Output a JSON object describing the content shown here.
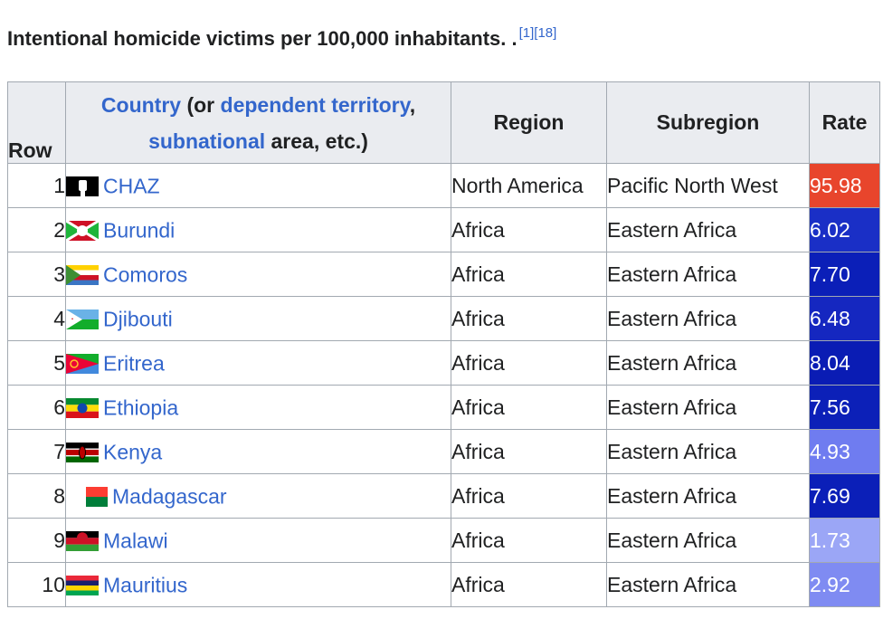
{
  "caption": "Intentional homicide victims per 100,000 inhabitants. .",
  "caption_refs": "[1][18]",
  "headers": {
    "row": "Row",
    "country_link1": "Country",
    "country_text1": " (or ",
    "country_link2": "dependent territory",
    "country_text2": ",",
    "country_link3": "subnational",
    "country_text3": " area, etc.)",
    "region": "Region",
    "subregion": "Subregion",
    "rate": "Rate"
  },
  "rows": [
    {
      "num": "1",
      "country": "CHAZ",
      "flag": "fist-flag-icon",
      "region": "North America",
      "subregion": "Pacific North West",
      "rate": "95.98",
      "rate_color": "#e8452c"
    },
    {
      "num": "2",
      "country": "Burundi",
      "flag": "burundi-flag-icon",
      "region": "Africa",
      "subregion": "Eastern Africa",
      "rate": "6.02",
      "rate_color": "#1a2fc6"
    },
    {
      "num": "3",
      "country": "Comoros",
      "flag": "comoros-flag-icon",
      "region": "Africa",
      "subregion": "Eastern Africa",
      "rate": "7.70",
      "rate_color": "#0b1fb8"
    },
    {
      "num": "4",
      "country": "Djibouti",
      "flag": "djibouti-flag-icon",
      "region": "Africa",
      "subregion": "Eastern Africa",
      "rate": "6.48",
      "rate_color": "#1527c0"
    },
    {
      "num": "5",
      "country": "Eritrea",
      "flag": "eritrea-flag-icon",
      "region": "Africa",
      "subregion": "Eastern Africa",
      "rate": "8.04",
      "rate_color": "#0a1cb4"
    },
    {
      "num": "6",
      "country": "Ethiopia",
      "flag": "ethiopia-flag-icon",
      "region": "Africa",
      "subregion": "Eastern Africa",
      "rate": "7.56",
      "rate_color": "#0c20b8"
    },
    {
      "num": "7",
      "country": "Kenya",
      "flag": "kenya-flag-icon",
      "region": "Africa",
      "subregion": "Eastern Africa",
      "rate": "4.93",
      "rate_color": "#6f7cf0"
    },
    {
      "num": "8",
      "country": "Madagascar",
      "flag": "madagascar-flag-icon",
      "region": "Africa",
      "subregion": "Eastern Africa",
      "rate": "7.69",
      "rate_color": "#0b1fb8"
    },
    {
      "num": "9",
      "country": "Malawi",
      "flag": "malawi-flag-icon",
      "region": "Africa",
      "subregion": "Eastern Africa",
      "rate": "1.73",
      "rate_color": "#9ba6f6"
    },
    {
      "num": "10",
      "country": "Mauritius",
      "flag": "mauritius-flag-icon",
      "region": "Africa",
      "subregion": "Eastern Africa",
      "rate": "2.92",
      "rate_color": "#7f8bf2"
    }
  ]
}
